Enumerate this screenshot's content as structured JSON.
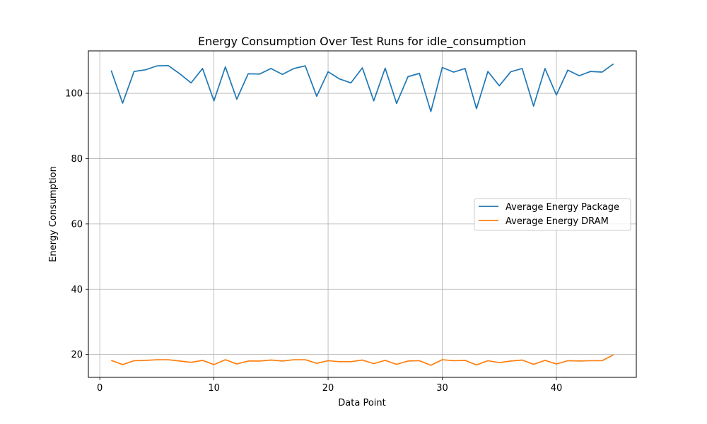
{
  "chart_data": {
    "type": "line",
    "title": "Energy Consumption Over Test Runs for idle_consumption",
    "xlabel": "Data Point",
    "ylabel": "Energy Consumption",
    "xlim": [
      -1,
      47
    ],
    "ylim": [
      13,
      113
    ],
    "xticks": [
      0,
      10,
      20,
      30,
      40
    ],
    "yticks": [
      20,
      40,
      60,
      80,
      100
    ],
    "grid": true,
    "legend_position": "center-right",
    "x": [
      1,
      2,
      3,
      4,
      5,
      6,
      7,
      8,
      9,
      10,
      11,
      12,
      13,
      14,
      15,
      16,
      17,
      18,
      19,
      20,
      21,
      22,
      23,
      24,
      25,
      26,
      27,
      28,
      29,
      30,
      31,
      32,
      33,
      34,
      35,
      36,
      37,
      38,
      39,
      40,
      41,
      42,
      43,
      44,
      45
    ],
    "series": [
      {
        "name": "Average Energy Package",
        "color": "#1f77b4",
        "values": [
          107.0,
          97.0,
          106.7,
          107.2,
          108.4,
          108.5,
          106.0,
          103.2,
          107.6,
          97.7,
          108.1,
          98.2,
          106.0,
          105.9,
          107.6,
          105.8,
          107.6,
          108.4,
          99.1,
          106.6,
          104.4,
          103.2,
          107.8,
          97.7,
          107.7,
          96.9,
          105.1,
          106.1,
          94.4,
          107.9,
          106.5,
          107.6,
          95.3,
          106.7,
          102.3,
          106.6,
          107.6,
          96.1,
          107.6,
          99.5,
          107.1,
          105.4,
          106.7,
          106.5,
          109.0
        ]
      },
      {
        "name": "Average Energy DRAM",
        "color": "#ff7f0e",
        "values": [
          18.2,
          16.9,
          18.1,
          18.2,
          18.4,
          18.4,
          18.0,
          17.6,
          18.2,
          16.9,
          18.4,
          17.1,
          18.0,
          18.0,
          18.3,
          18.0,
          18.4,
          18.4,
          17.3,
          18.1,
          17.8,
          17.8,
          18.3,
          17.2,
          18.2,
          17.0,
          18.0,
          18.1,
          16.7,
          18.4,
          18.1,
          18.2,
          16.8,
          18.1,
          17.5,
          18.0,
          18.3,
          17.0,
          18.2,
          17.1,
          18.1,
          18.0,
          18.1,
          18.1,
          19.9
        ]
      }
    ]
  }
}
